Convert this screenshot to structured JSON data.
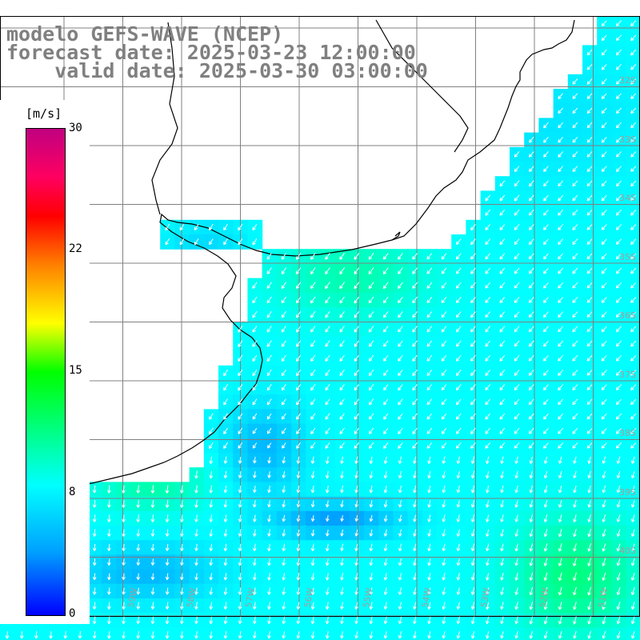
{
  "title": {
    "line1": "modelo GEFS-WAVE (NCEP)",
    "line2": "forecast date: 2025-03-23 12:00:00",
    "line3": "    valid date: 2025-03-30 03:00:00"
  },
  "colorbar": {
    "units": "[m/s]",
    "min": 0,
    "max": 30,
    "tick_labels": [
      "30",
      "22",
      "15",
      "8",
      "0"
    ],
    "tick_values": [
      30,
      22,
      15,
      8,
      0
    ],
    "colors": [
      "#0000ff",
      "#00a0ff",
      "#00ffff",
      "#00ff00",
      "#ffff00",
      "#ff8000",
      "#ff0000",
      "#c00080"
    ]
  },
  "map": {
    "lat_labels": [
      "32S",
      "33S",
      "34S",
      "35S",
      "36S",
      "37S",
      "38S",
      "39S",
      "40S"
    ],
    "lon_labels": [
      "61W",
      "60W",
      "59W",
      "58W",
      "57W",
      "56W",
      "55W",
      "54W",
      "53W",
      "52W",
      "51W"
    ],
    "wind_direction": "from north-east",
    "max_wind_ms": 13,
    "min_wind_ms": 3
  }
}
